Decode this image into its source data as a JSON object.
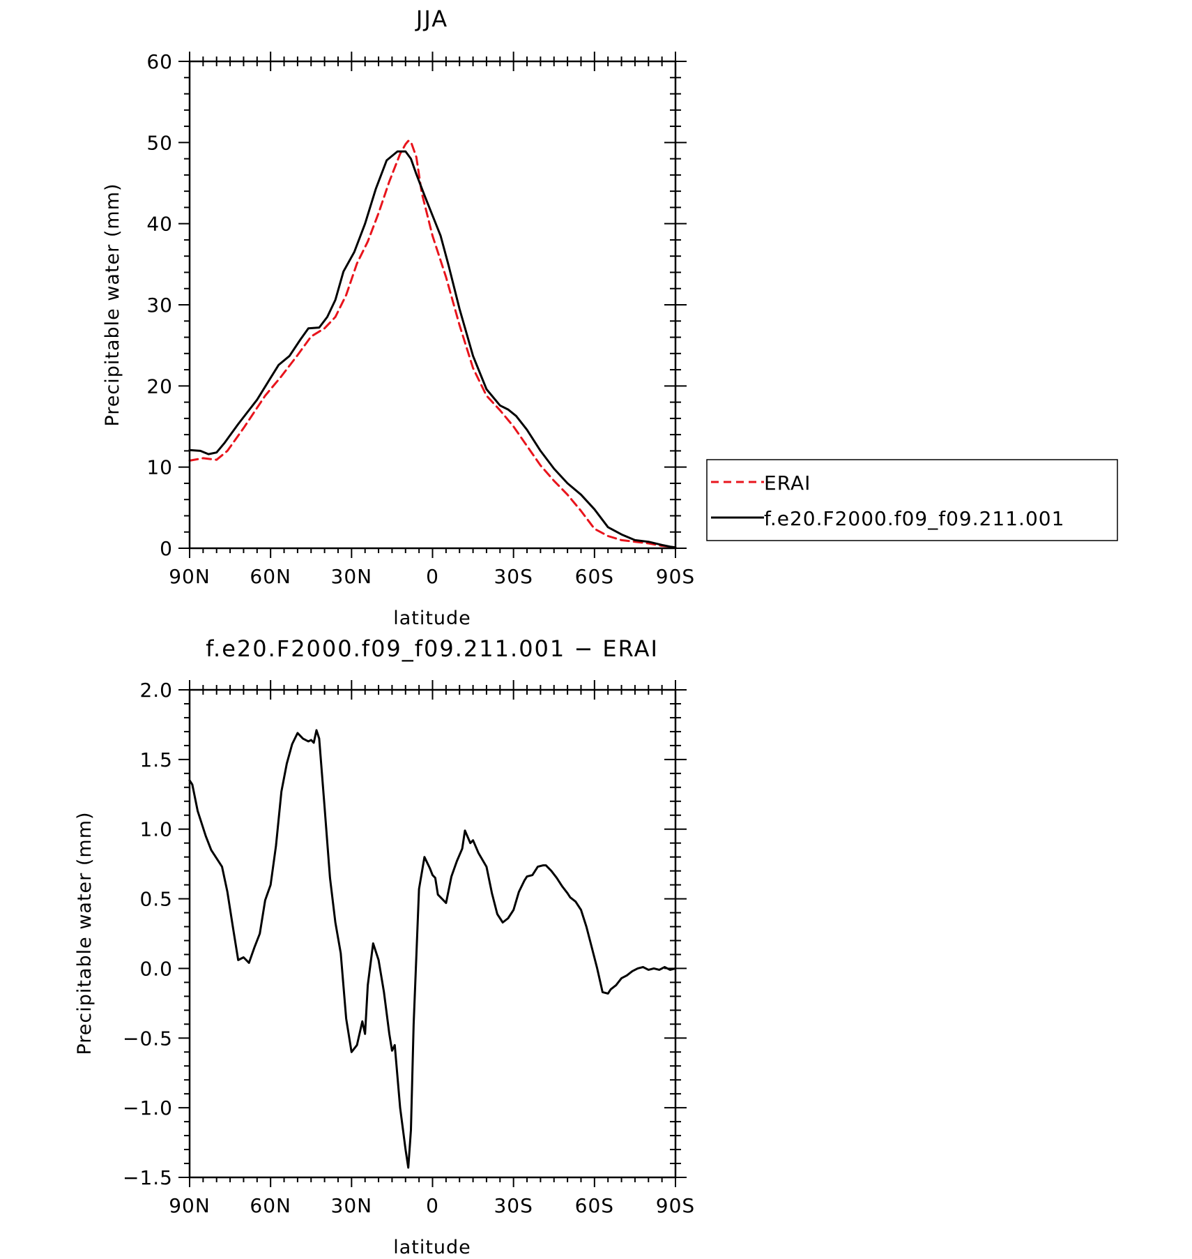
{
  "chart_data": [
    {
      "type": "line",
      "title": "JJA",
      "xlabel": "latitude",
      "ylabel": "Precipitable water (mm)",
      "xlim": [
        90,
        -90
      ],
      "ylim": [
        0,
        60
      ],
      "x_tick_values": [
        90,
        60,
        30,
        0,
        -30,
        -60,
        -90
      ],
      "x_tick_labels": [
        "90N",
        "60N",
        "30N",
        "0",
        "30S",
        "60S",
        "90S"
      ],
      "y_tick_values": [
        0,
        10,
        20,
        30,
        40,
        50,
        60
      ],
      "y_tick_labels": [
        "0",
        "10",
        "20",
        "30",
        "40",
        "50",
        "60"
      ],
      "legend_position": "right",
      "series": [
        {
          "name": "ERAI",
          "color": "#e8141c",
          "dash": true,
          "x": [
            90,
            85,
            80,
            76,
            70,
            62,
            56,
            50,
            45,
            40,
            36,
            32,
            28,
            24,
            20,
            16,
            12,
            10,
            9,
            8,
            6,
            4,
            0,
            -5,
            -10,
            -15,
            -20,
            -25,
            -30,
            -35,
            -40,
            -45,
            -50,
            -55,
            -60,
            -65,
            -70,
            -75,
            -80,
            -85,
            -88,
            -90
          ],
          "y": [
            10.8,
            11.1,
            10.9,
            12.0,
            14.8,
            18.8,
            21.2,
            23.8,
            26.1,
            27.1,
            28.5,
            31.2,
            35.1,
            37.8,
            41.3,
            45.2,
            48.6,
            49.8,
            50.2,
            50.1,
            48.2,
            43.8,
            38.5,
            33.4,
            27.5,
            22.2,
            18.8,
            17.0,
            15.0,
            12.6,
            10.2,
            8.3,
            6.6,
            4.6,
            2.4,
            1.5,
            1.0,
            0.8,
            0.6,
            0.3,
            0.2,
            0.1
          ]
        },
        {
          "name": "f.e20.F2000.f09_f09.211.001",
          "color": "#000000",
          "dash": false,
          "x": [
            90,
            86,
            83,
            80,
            77,
            72,
            65,
            60,
            57,
            53,
            49,
            46,
            42,
            39,
            36,
            33,
            29,
            25,
            21,
            17,
            13,
            10,
            8,
            6,
            3,
            0,
            -3,
            -6,
            -10,
            -15,
            -20,
            -25,
            -28,
            -31,
            -35,
            -40,
            -45,
            -50,
            -55,
            -60,
            -65,
            -70,
            -75,
            -80,
            -85,
            -88,
            -90
          ],
          "y": [
            12.1,
            12.0,
            11.6,
            11.8,
            13.0,
            15.3,
            18.3,
            21.0,
            22.6,
            23.7,
            25.7,
            27.1,
            27.2,
            28.5,
            30.6,
            34.1,
            36.5,
            40.0,
            44.3,
            47.8,
            48.9,
            48.9,
            48.0,
            46.1,
            43.5,
            41.0,
            38.5,
            34.8,
            29.5,
            23.7,
            19.6,
            17.6,
            17.1,
            16.3,
            14.6,
            12.0,
            9.8,
            8.0,
            6.6,
            4.8,
            2.6,
            1.7,
            1.0,
            0.8,
            0.4,
            0.2,
            0.1
          ]
        }
      ]
    },
    {
      "type": "line",
      "title": "f.e20.F2000.f09_f09.211.001 − ERAI",
      "xlabel": "latitude",
      "ylabel": "Precipitable water (mm)",
      "xlim": [
        90,
        -90
      ],
      "ylim": [
        -1.5,
        2.0
      ],
      "x_tick_values": [
        90,
        60,
        30,
        0,
        -30,
        -60,
        -90
      ],
      "x_tick_labels": [
        "90N",
        "60N",
        "30N",
        "0",
        "30S",
        "60S",
        "90S"
      ],
      "y_tick_values": [
        2.0,
        1.5,
        1.0,
        0.5,
        0.0,
        -0.5,
        -1.0,
        -1.5
      ],
      "y_tick_labels": [
        "2.0",
        "1.5",
        "1.0",
        "0.5",
        "0.0",
        "−0.5",
        "−1.0",
        "−1.5"
      ],
      "series": [
        {
          "color": "#000000",
          "dash": false,
          "x": [
            90,
            89,
            87,
            84,
            82,
            78,
            76,
            74,
            72,
            70,
            68,
            66,
            64,
            62,
            60,
            58,
            56,
            54,
            52,
            50,
            48,
            46,
            45,
            44,
            43,
            42,
            40,
            38,
            36,
            34,
            32,
            30,
            28,
            26,
            25,
            24,
            22,
            20,
            18,
            16,
            15,
            14,
            12,
            10,
            9,
            8,
            7,
            5,
            3,
            1,
            0,
            -1,
            -2,
            -3,
            -5,
            -7,
            -9,
            -11,
            -12,
            -14,
            -15,
            -17,
            -20,
            -22,
            -24,
            -26,
            -28,
            -30,
            -32,
            -34,
            -35,
            -37,
            -39,
            -41,
            -42,
            -44,
            -46,
            -48,
            -50,
            -51,
            -53,
            -55,
            -57,
            -59,
            -61,
            -63,
            -65,
            -66,
            -68,
            -70,
            -72,
            -74,
            -76,
            -78,
            -80,
            -82,
            -84,
            -86,
            -88,
            -90
          ],
          "y": [
            1.35,
            1.32,
            1.13,
            0.95,
            0.85,
            0.73,
            0.55,
            0.3,
            0.06,
            0.08,
            0.04,
            0.15,
            0.25,
            0.49,
            0.6,
            0.88,
            1.27,
            1.47,
            1.61,
            1.69,
            1.65,
            1.63,
            1.64,
            1.62,
            1.71,
            1.65,
            1.16,
            0.65,
            0.33,
            0.11,
            -0.36,
            -0.6,
            -0.55,
            -0.38,
            -0.47,
            -0.12,
            0.18,
            0.06,
            -0.17,
            -0.47,
            -0.59,
            -0.55,
            -1.0,
            -1.3,
            -1.43,
            -1.16,
            -0.4,
            0.57,
            0.8,
            0.72,
            0.67,
            0.65,
            0.53,
            0.51,
            0.47,
            0.66,
            0.77,
            0.86,
            0.99,
            0.9,
            0.92,
            0.83,
            0.73,
            0.54,
            0.39,
            0.33,
            0.36,
            0.42,
            0.55,
            0.63,
            0.66,
            0.67,
            0.73,
            0.74,
            0.74,
            0.7,
            0.65,
            0.59,
            0.54,
            0.51,
            0.48,
            0.42,
            0.3,
            0.15,
            0.0,
            -0.17,
            -0.18,
            -0.15,
            -0.12,
            -0.07,
            -0.05,
            -0.02,
            0.0,
            0.01,
            -0.01,
            0.0,
            -0.01,
            0.01,
            -0.01,
            0.0
          ]
        }
      ]
    }
  ]
}
